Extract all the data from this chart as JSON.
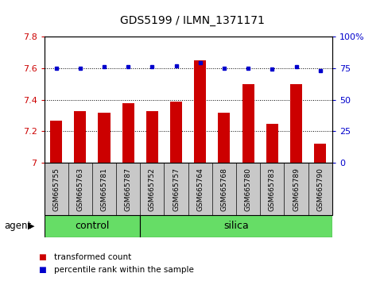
{
  "title": "GDS5199 / ILMN_1371171",
  "samples": [
    "GSM665755",
    "GSM665763",
    "GSM665781",
    "GSM665787",
    "GSM665752",
    "GSM665757",
    "GSM665764",
    "GSM665768",
    "GSM665780",
    "GSM665783",
    "GSM665789",
    "GSM665790"
  ],
  "transformed_count": [
    7.27,
    7.33,
    7.32,
    7.38,
    7.33,
    7.39,
    7.65,
    7.32,
    7.5,
    7.25,
    7.5,
    7.12
  ],
  "percentile_rank": [
    75,
    75,
    76,
    76,
    76,
    77,
    79,
    75,
    75,
    74,
    76,
    73
  ],
  "ylim_left": [
    7.0,
    7.8
  ],
  "ylim_right": [
    0,
    100
  ],
  "yticks_left": [
    7.0,
    7.2,
    7.4,
    7.6,
    7.8
  ],
  "yticks_right": [
    0,
    25,
    50,
    75,
    100
  ],
  "ytick_labels_right": [
    "0",
    "25",
    "50",
    "75",
    "100%"
  ],
  "ytick_labels_left": [
    "7",
    "7.2",
    "7.4",
    "7.6",
    "7.8"
  ],
  "bar_color": "#CC0000",
  "dot_color": "#0000CC",
  "bar_width": 0.5,
  "tick_label_area_color": "#C8C8C8",
  "control_color": "#66DD66",
  "silica_color": "#66DD66",
  "control_label": "control",
  "silica_label": "silica",
  "control_range": [
    0,
    4
  ],
  "silica_range": [
    4,
    12
  ],
  "group_label": "agent",
  "legend_labels": [
    "transformed count",
    "percentile rank within the sample"
  ],
  "legend_colors": [
    "#CC0000",
    "#0000CC"
  ]
}
